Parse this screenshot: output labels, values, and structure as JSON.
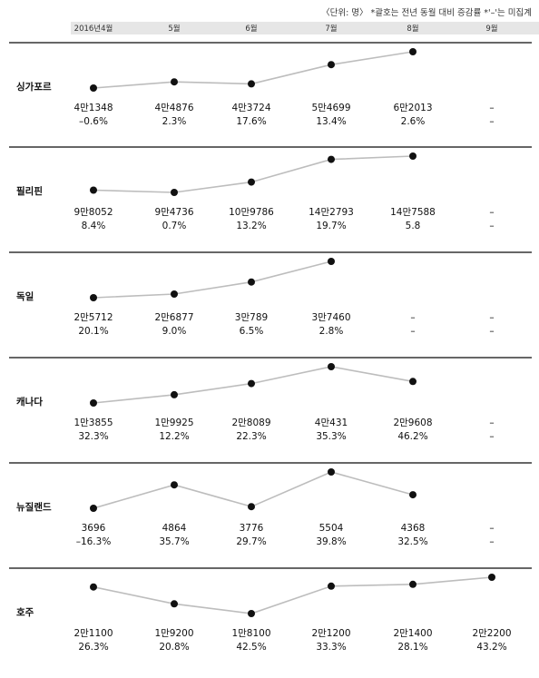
{
  "note": "〈단위: 명〉 *괄호는 전년 동월 대비 증감률  *'–'는 미집계",
  "chart_data": {
    "type": "line",
    "categories": [
      "2016년4월",
      "5월",
      "6월",
      "7월",
      "8월",
      "9월"
    ],
    "panels": [
      {
        "name": "싱가포르",
        "values": [
          41348,
          44876,
          43724,
          54699,
          62013,
          null
        ],
        "value_labels": [
          "4만1348",
          "4만4876",
          "4만3724",
          "5만4699",
          "6만2013",
          "–"
        ],
        "pct_labels": [
          "–0.6%",
          "2.3%",
          "17.6%",
          "13.4%",
          "2.6%",
          "–"
        ]
      },
      {
        "name": "필리핀",
        "values": [
          98052,
          94736,
          109786,
          142793,
          147588,
          null
        ],
        "value_labels": [
          "9만8052",
          "9만4736",
          "10만9786",
          "14만2793",
          "14만7588",
          "–"
        ],
        "pct_labels": [
          "8.4%",
          "0.7%",
          "13.2%",
          "19.7%",
          "5.8",
          "–"
        ]
      },
      {
        "name": "독일",
        "values": [
          25712,
          26877,
          30789,
          37460,
          null,
          null
        ],
        "value_labels": [
          "2만5712",
          "2만6877",
          "3만789",
          "3만7460",
          "–",
          "–"
        ],
        "pct_labels": [
          "20.1%",
          "9.0%",
          "6.5%",
          "2.8%",
          "–",
          "–"
        ]
      },
      {
        "name": "캐나다",
        "values": [
          13855,
          19925,
          28089,
          40431,
          29608,
          null
        ],
        "value_labels": [
          "1만3855",
          "1만9925",
          "2만8089",
          "4만431",
          "2만9608",
          "–"
        ],
        "pct_labels": [
          "32.3%",
          "12.2%",
          "22.3%",
          "35.3%",
          "46.2%",
          "–"
        ]
      },
      {
        "name": "뉴질랜드",
        "values": [
          3696,
          4864,
          3776,
          5504,
          4368,
          null
        ],
        "value_labels": [
          "3696",
          "4864",
          "3776",
          "5504",
          "4368",
          "–"
        ],
        "pct_labels": [
          "–16.3%",
          "35.7%",
          "29.7%",
          "39.8%",
          "32.5%",
          "–"
        ]
      },
      {
        "name": "호주",
        "values": [
          21100,
          19200,
          18100,
          21200,
          21400,
          22200
        ],
        "value_labels": [
          "2만1100",
          "1만9200",
          "1만8100",
          "2만1200",
          "2만1400",
          "2만2200"
        ],
        "pct_labels": [
          "26.3%",
          "20.8%",
          "42.5%",
          "33.3%",
          "28.1%",
          "43.2%"
        ]
      }
    ]
  }
}
